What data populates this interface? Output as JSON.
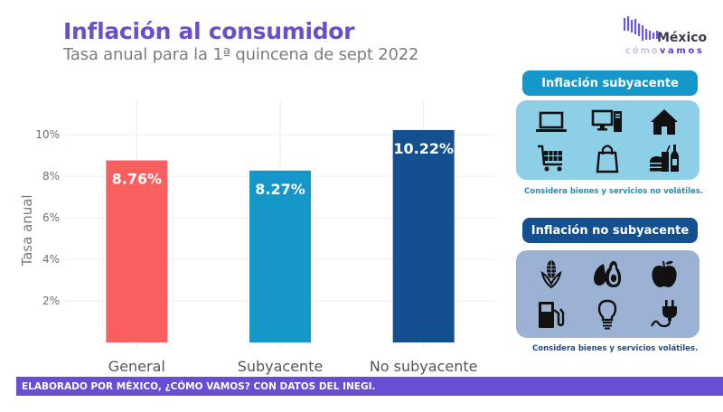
{
  "header": {
    "title": "Inflación al consumidor",
    "subtitle": "Tasa anual para la 1ª quincena de sept 2022"
  },
  "logo": {
    "name": "México",
    "tagline_light": "cómo",
    "tagline_bold": "vamos"
  },
  "chart_data": {
    "type": "bar",
    "title": "Inflación al consumidor",
    "subtitle": "Tasa anual para la 1ª quincena de sept 2022",
    "xlabel": "",
    "ylabel": "Tasa anual",
    "categories": [
      "General",
      "Subyacente",
      "No subyacente"
    ],
    "values": [
      8.76,
      8.27,
      10.22
    ],
    "data_labels": [
      "8.76%",
      "8.27%",
      "10.22%"
    ],
    "colors": [
      "#fa5f5f",
      "#1597c9",
      "#14508f"
    ],
    "yticks": [
      2,
      4,
      6,
      8,
      10
    ],
    "ytick_labels": [
      "2%",
      "4%",
      "6%",
      "8%",
      "10%"
    ],
    "ylim": [
      0,
      10.8
    ],
    "grid": true,
    "legend": "none"
  },
  "panels": [
    {
      "title": "Inflación subyacente",
      "caption": "Considera bienes y servicios no volátiles.",
      "icons": [
        "laptop-icon",
        "desktop-computer-icon",
        "house-icon",
        "shopping-cart-icon",
        "shopping-bag-icon",
        "food-and-drink-icon"
      ]
    },
    {
      "title": "Inflación no subyacente",
      "caption": "Considera bienes y servicios volátiles.",
      "icons": [
        "corn-icon",
        "avocado-icon",
        "apple-icon",
        "fuel-pump-icon",
        "light-bulb-icon",
        "electric-plug-icon"
      ]
    }
  ],
  "footer": {
    "text": "ELABORADO POR MÉXICO, ¿CÓMO VAMOS? CON DATOS DEL INEGI."
  },
  "colors": {
    "title": "#6a4fc8",
    "footer_bg": "#684ed4",
    "subyacente_header": "#1597c9",
    "subyacente_panel": "#8ccfe6",
    "no_subyacente_header": "#14508f",
    "no_subyacente_panel": "#9bb2d4"
  }
}
